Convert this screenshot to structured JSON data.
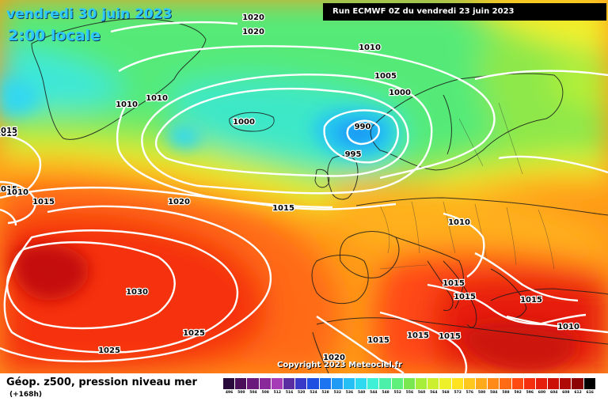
{
  "header": {
    "date_title": "vendredi 30 juin 2023",
    "time_title": "2:00 locale",
    "run_info": "Run ECMWF 0Z du vendredi 23 juin 2023"
  },
  "footer": {
    "title": "Géop. z500, pression niveau mer",
    "subtitle": "(+168h)",
    "copyright": "Copyright 2023 Meteociel.fr"
  },
  "isobar_labels": [
    "1020",
    "1020",
    "1010",
    "1005",
    "1000",
    "1010",
    "1010",
    "1015",
    "1000",
    "990",
    "995",
    "1015",
    "1010",
    "1015",
    "1020",
    "1015",
    "1030",
    "1010",
    "1015",
    "1015",
    "1015",
    "1025",
    "1015",
    "1025",
    "1020",
    "1015",
    "1015",
    "1010",
    "1015"
  ],
  "legend": {
    "values": [
      "496",
      "500",
      "504",
      "508",
      "512",
      "516",
      "520",
      "524",
      "528",
      "532",
      "536",
      "540",
      "544",
      "548",
      "552",
      "556",
      "560",
      "564",
      "568",
      "572",
      "576",
      "580",
      "584",
      "588",
      "592",
      "596",
      "600",
      "604",
      "608",
      "612",
      "616"
    ],
    "colors": [
      "#2a0a3a",
      "#4b0f5a",
      "#6a1a7a",
      "#8a2a9a",
      "#a63cb6",
      "#5a2ea0",
      "#3a3ac8",
      "#1f4fe0",
      "#1d74f0",
      "#1f9af5",
      "#25bff5",
      "#2fdaf0",
      "#3ef0d6",
      "#4cf0a8",
      "#5ef07a",
      "#7ae650",
      "#a6ee3a",
      "#ccf030",
      "#eef02a",
      "#ffe320",
      "#ffc81e",
      "#ffaa1a",
      "#ff8a18",
      "#ff6a14",
      "#ff4a12",
      "#f5300f",
      "#e61e0c",
      "#cc1208",
      "#b00a06",
      "#8c0504",
      "#000000"
    ]
  }
}
